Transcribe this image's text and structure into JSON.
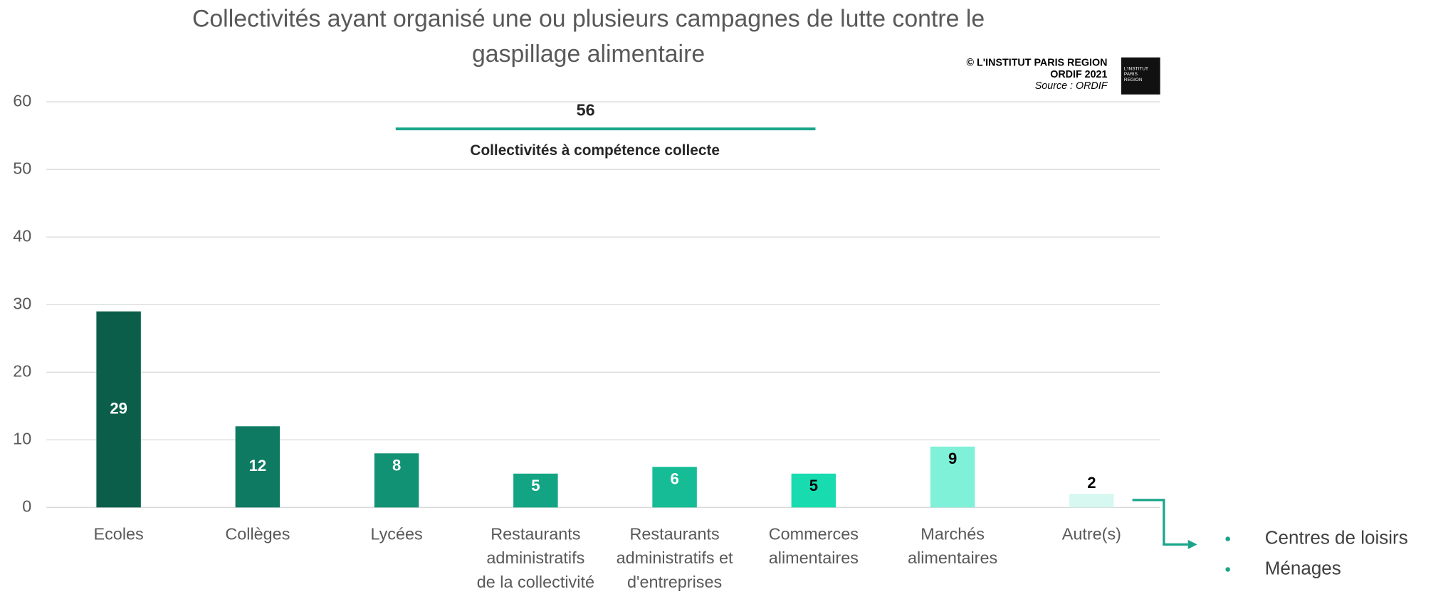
{
  "chart_data": {
    "type": "bar",
    "title": "Collectivités ayant organisé une ou plusieurs campagnes de lutte contre le gaspillage alimentaire",
    "credit": [
      "© L'INSTITUT PARIS REGION",
      "ORDIF 2021",
      "Source : ORDIF"
    ],
    "logo": "L'INSTITUT PARIS REGION",
    "categories": [
      "Ecoles",
      "Collèges",
      "Lycées",
      "Restaurants\nadministratifs\nde la collectivité",
      "Restaurants\nadministratifs et\nd'entreprises",
      "Commerces\nalimentaires",
      "Marchés\nalimentaires",
      "Autre(s)"
    ],
    "values": [
      29,
      12,
      8,
      5,
      6,
      5,
      9,
      2
    ],
    "colors": [
      "#0b5e4a",
      "#0e7a62",
      "#119274",
      "#13a484",
      "#16bc96",
      "#18dcb0",
      "#7ff1d9",
      "#d7f8f1"
    ],
    "label_colors": [
      "#ffffff",
      "#ffffff",
      "#ffffff",
      "#ffffff",
      "#ffffff",
      "#000000",
      "#000000",
      "#000000"
    ],
    "reference": {
      "value": 56,
      "label": "Collectivités à compétence collecte",
      "color": "#1aa58a"
    },
    "annotation": [
      "Centres de loisirs",
      "Ménages"
    ],
    "ylim": [
      0,
      60
    ],
    "yticks": [
      0,
      10,
      20,
      30,
      40,
      50,
      60
    ],
    "grid": true
  }
}
